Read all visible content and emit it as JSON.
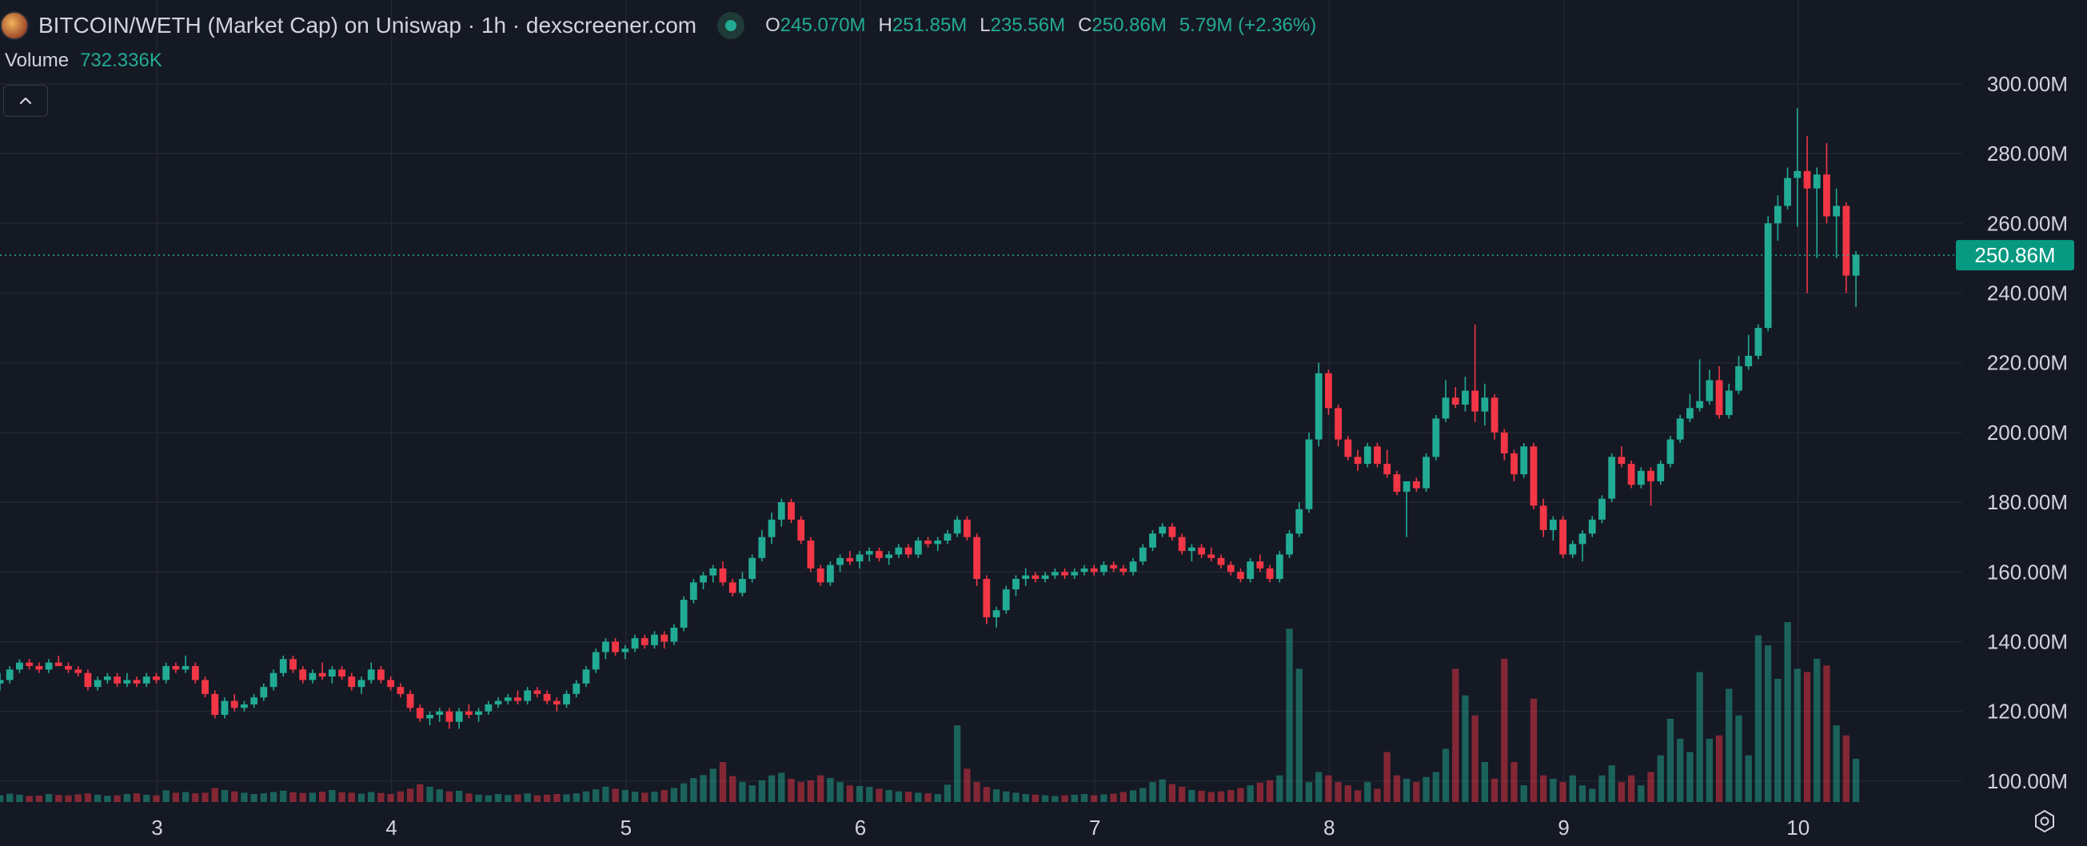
{
  "header": {
    "title": "BITCOIN/WETH (Market Cap) on Uniswap · 1h · dexscreener.com",
    "ohlc": [
      {
        "key": "O",
        "value": "245.070M"
      },
      {
        "key": "H",
        "value": "251.85M"
      },
      {
        "key": "L",
        "value": "235.56M"
      },
      {
        "key": "C",
        "value": "250.86M"
      },
      {
        "key": "",
        "value": "5.79M (+2.36%)"
      }
    ],
    "volume_label": "Volume",
    "volume_value": "732.336K"
  },
  "icons": {
    "coin": "coin-logo-icon",
    "live": "live-status-icon",
    "collapse": "chevron-up-icon",
    "settings": "settings-gear-icon"
  },
  "colors": {
    "background": "#151924",
    "grid": "#232733",
    "up": "#22ab94",
    "down": "#f23645",
    "text": "#d1d4dc",
    "price_tag": "#089981"
  },
  "chart_data": {
    "type": "candlestick",
    "title": "BITCOIN/WETH (Market Cap) on Uniswap · 1h · dexscreener.com",
    "interval": "1h",
    "x_tick_labels": [
      "3",
      "4",
      "5",
      "6",
      "7",
      "8",
      "9",
      "10"
    ],
    "y_tick_labels": [
      "100.00M",
      "120.00M",
      "140.00M",
      "160.00M",
      "180.00M",
      "200.00M",
      "220.00M",
      "240.00M",
      "260.00M",
      "280.00M",
      "300.00M"
    ],
    "y_ticks": [
      100,
      120,
      140,
      160,
      180,
      200,
      220,
      240,
      260,
      280,
      300
    ],
    "y_unit": "M",
    "ylim": [
      94,
      308
    ],
    "xlim_days": [
      2.33,
      10.7
    ],
    "first_candle_day": 2.33,
    "candles_per_day": 24,
    "last_price": 250.86,
    "last_price_label": "250.86M",
    "candles": [
      [
        128,
        131,
        126,
        129
      ],
      [
        129,
        133,
        128,
        132
      ],
      [
        132,
        135,
        131,
        134
      ],
      [
        134,
        135,
        132,
        133
      ],
      [
        133,
        134,
        131,
        132
      ],
      [
        132,
        135,
        131,
        134
      ],
      [
        134,
        136,
        133,
        133
      ],
      [
        133,
        134,
        131,
        132
      ],
      [
        132,
        133,
        130,
        131
      ],
      [
        131,
        132,
        126,
        127
      ],
      [
        127,
        130,
        126,
        129
      ],
      [
        129,
        131,
        128,
        130
      ],
      [
        130,
        131,
        127,
        128
      ],
      [
        128,
        131,
        127,
        129
      ],
      [
        129,
        130,
        127,
        128
      ],
      [
        128,
        131,
        127,
        130
      ],
      [
        130,
        131,
        128,
        129
      ],
      [
        129,
        134,
        128,
        133
      ],
      [
        133,
        134,
        131,
        132
      ],
      [
        132,
        136,
        131,
        133
      ],
      [
        133,
        134,
        128,
        129
      ],
      [
        129,
        130,
        124,
        125
      ],
      [
        125,
        126,
        118,
        119
      ],
      [
        119,
        124,
        118,
        123
      ],
      [
        123,
        125,
        120,
        121
      ],
      [
        121,
        123,
        120,
        122
      ],
      [
        122,
        125,
        121,
        124
      ],
      [
        124,
        128,
        123,
        127
      ],
      [
        127,
        132,
        126,
        131
      ],
      [
        131,
        136,
        130,
        135
      ],
      [
        135,
        136,
        131,
        132
      ],
      [
        132,
        133,
        128,
        129
      ],
      [
        129,
        132,
        128,
        131
      ],
      [
        131,
        134,
        129,
        130
      ],
      [
        130,
        133,
        128,
        132
      ],
      [
        132,
        133,
        129,
        130
      ],
      [
        130,
        131,
        126,
        127
      ],
      [
        127,
        130,
        125,
        129
      ],
      [
        129,
        134,
        128,
        132
      ],
      [
        132,
        133,
        128,
        129
      ],
      [
        129,
        130,
        126,
        127
      ],
      [
        127,
        128,
        124,
        125
      ],
      [
        125,
        126,
        120,
        121
      ],
      [
        121,
        122,
        117,
        118
      ],
      [
        118,
        120,
        116,
        119
      ],
      [
        119,
        121,
        117,
        120
      ],
      [
        120,
        121,
        115,
        117
      ],
      [
        117,
        121,
        115,
        120
      ],
      [
        120,
        122,
        118,
        119
      ],
      [
        119,
        121,
        117,
        120
      ],
      [
        120,
        123,
        119,
        122
      ],
      [
        122,
        124,
        121,
        123
      ],
      [
        123,
        125,
        122,
        124
      ],
      [
        124,
        126,
        122,
        123
      ],
      [
        123,
        127,
        122,
        126
      ],
      [
        126,
        127,
        124,
        125
      ],
      [
        125,
        126,
        122,
        123
      ],
      [
        123,
        124,
        120,
        122
      ],
      [
        122,
        126,
        121,
        125
      ],
      [
        125,
        129,
        124,
        128
      ],
      [
        128,
        133,
        127,
        132
      ],
      [
        132,
        138,
        131,
        137
      ],
      [
        137,
        141,
        135,
        140
      ],
      [
        140,
        141,
        136,
        137
      ],
      [
        137,
        139,
        135,
        138
      ],
      [
        138,
        142,
        137,
        141
      ],
      [
        141,
        142,
        138,
        139
      ],
      [
        139,
        143,
        138,
        142
      ],
      [
        142,
        143,
        138,
        140
      ],
      [
        140,
        145,
        139,
        144
      ],
      [
        144,
        153,
        143,
        152
      ],
      [
        152,
        158,
        151,
        157
      ],
      [
        157,
        160,
        155,
        159
      ],
      [
        159,
        162,
        157,
        161
      ],
      [
        161,
        163,
        156,
        157
      ],
      [
        157,
        158,
        153,
        154
      ],
      [
        154,
        160,
        153,
        158
      ],
      [
        158,
        165,
        157,
        164
      ],
      [
        164,
        172,
        163,
        170
      ],
      [
        170,
        177,
        168,
        175
      ],
      [
        175,
        181,
        173,
        180
      ],
      [
        180,
        181,
        174,
        175
      ],
      [
        175,
        176,
        168,
        169
      ],
      [
        169,
        170,
        160,
        161
      ],
      [
        161,
        162,
        156,
        157
      ],
      [
        157,
        163,
        156,
        162
      ],
      [
        162,
        165,
        160,
        164
      ],
      [
        164,
        166,
        162,
        163
      ],
      [
        163,
        166,
        161,
        165
      ],
      [
        165,
        167,
        163,
        166
      ],
      [
        166,
        167,
        163,
        164
      ],
      [
        164,
        166,
        162,
        165
      ],
      [
        165,
        168,
        164,
        167
      ],
      [
        167,
        168,
        164,
        165
      ],
      [
        165,
        170,
        164,
        169
      ],
      [
        169,
        170,
        167,
        168
      ],
      [
        168,
        170,
        166,
        169
      ],
      [
        169,
        172,
        168,
        171
      ],
      [
        171,
        176,
        170,
        175
      ],
      [
        175,
        176,
        169,
        170
      ],
      [
        170,
        171,
        156,
        158
      ],
      [
        158,
        159,
        145,
        147
      ],
      [
        147,
        150,
        144,
        149
      ],
      [
        149,
        156,
        148,
        155
      ],
      [
        155,
        159,
        153,
        158
      ],
      [
        158,
        161,
        156,
        159
      ],
      [
        159,
        160,
        157,
        158
      ],
      [
        158,
        160,
        157,
        159
      ],
      [
        159,
        161,
        158,
        160
      ],
      [
        160,
        161,
        158,
        159
      ],
      [
        159,
        161,
        158,
        160
      ],
      [
        160,
        162,
        159,
        161
      ],
      [
        161,
        162,
        159,
        160
      ],
      [
        160,
        163,
        159,
        162
      ],
      [
        162,
        163,
        160,
        161
      ],
      [
        161,
        162,
        159,
        160
      ],
      [
        160,
        164,
        159,
        163
      ],
      [
        163,
        168,
        162,
        167
      ],
      [
        167,
        172,
        166,
        171
      ],
      [
        171,
        174,
        170,
        173
      ],
      [
        173,
        174,
        169,
        170
      ],
      [
        170,
        171,
        165,
        166
      ],
      [
        166,
        168,
        163,
        167
      ],
      [
        167,
        168,
        164,
        165
      ],
      [
        165,
        167,
        163,
        164
      ],
      [
        164,
        165,
        161,
        162
      ],
      [
        162,
        163,
        159,
        160
      ],
      [
        160,
        161,
        157,
        158
      ],
      [
        158,
        164,
        157,
        163
      ],
      [
        163,
        165,
        160,
        161
      ],
      [
        161,
        162,
        157,
        158
      ],
      [
        158,
        166,
        157,
        165
      ],
      [
        165,
        172,
        164,
        171
      ],
      [
        171,
        180,
        170,
        178
      ],
      [
        178,
        200,
        177,
        198
      ],
      [
        198,
        220,
        196,
        217
      ],
      [
        217,
        218,
        205,
        207
      ],
      [
        207,
        208,
        196,
        198
      ],
      [
        198,
        199,
        192,
        193
      ],
      [
        193,
        195,
        189,
        191
      ],
      [
        191,
        197,
        190,
        196
      ],
      [
        196,
        197,
        190,
        191
      ],
      [
        191,
        195,
        187,
        188
      ],
      [
        188,
        189,
        182,
        183
      ],
      [
        183,
        184,
        170,
        186
      ],
      [
        186,
        187,
        183,
        184
      ],
      [
        184,
        194,
        183,
        193
      ],
      [
        193,
        205,
        192,
        204
      ],
      [
        204,
        215,
        203,
        210
      ],
      [
        210,
        213,
        207,
        208
      ],
      [
        208,
        216,
        206,
        212
      ],
      [
        212,
        231,
        203,
        206
      ],
      [
        206,
        214,
        202,
        210
      ],
      [
        210,
        211,
        198,
        200
      ],
      [
        200,
        201,
        192,
        194
      ],
      [
        194,
        195,
        186,
        188
      ],
      [
        188,
        197,
        187,
        196
      ],
      [
        196,
        197,
        178,
        179
      ],
      [
        179,
        181,
        170,
        172
      ],
      [
        172,
        176,
        169,
        175
      ],
      [
        175,
        176,
        164,
        165
      ],
      [
        165,
        169,
        164,
        168
      ],
      [
        168,
        172,
        163,
        171
      ],
      [
        171,
        176,
        170,
        175
      ],
      [
        175,
        182,
        174,
        181
      ],
      [
        181,
        194,
        180,
        193
      ],
      [
        193,
        196,
        190,
        191
      ],
      [
        191,
        192,
        184,
        185
      ],
      [
        185,
        190,
        184,
        189
      ],
      [
        189,
        190,
        179,
        186
      ],
      [
        186,
        192,
        185,
        191
      ],
      [
        191,
        199,
        190,
        198
      ],
      [
        198,
        205,
        197,
        204
      ],
      [
        204,
        211,
        203,
        207
      ],
      [
        207,
        221,
        206,
        209
      ],
      [
        209,
        218,
        208,
        215
      ],
      [
        215,
        219,
        204,
        205
      ],
      [
        205,
        214,
        204,
        212
      ],
      [
        212,
        222,
        211,
        219
      ],
      [
        219,
        228,
        218,
        222
      ],
      [
        222,
        231,
        221,
        230
      ],
      [
        230,
        262,
        229,
        260
      ],
      [
        260,
        268,
        255,
        265
      ],
      [
        265,
        276,
        264,
        273
      ],
      [
        273,
        293,
        259,
        275
      ],
      [
        275,
        285,
        240,
        270
      ],
      [
        270,
        276,
        250,
        274
      ],
      [
        274,
        283,
        260,
        262
      ],
      [
        262,
        270,
        250,
        265
      ],
      [
        265,
        266,
        240,
        245
      ],
      [
        245,
        252,
        236,
        251
      ]
    ],
    "volumes": [
      2.0,
      2.5,
      2.2,
      1.8,
      1.9,
      2.4,
      2.1,
      2.0,
      2.3,
      2.6,
      2.2,
      1.9,
      2.0,
      2.4,
      2.6,
      2.2,
      2.0,
      3.5,
      2.8,
      3.0,
      2.6,
      2.8,
      4.2,
      3.6,
      3.2,
      2.8,
      2.4,
      2.6,
      3.0,
      3.4,
      2.9,
      2.7,
      2.8,
      3.1,
      3.6,
      2.9,
      2.8,
      2.5,
      3.0,
      2.7,
      2.4,
      3.2,
      4.0,
      5.3,
      4.6,
      3.8,
      3.2,
      3.4,
      2.6,
      2.2,
      2.0,
      2.4,
      2.1,
      2.3,
      2.6,
      2.0,
      2.2,
      2.4,
      2.3,
      2.6,
      3.2,
      3.8,
      4.6,
      4.0,
      3.6,
      3.1,
      2.8,
      3.1,
      3.6,
      4.2,
      5.6,
      7.2,
      8.1,
      10.0,
      12.0,
      7.8,
      6.0,
      5.0,
      6.5,
      8.0,
      8.8,
      7.0,
      6.0,
      6.5,
      8.0,
      7.2,
      6.0,
      5.0,
      4.8,
      4.5,
      4.0,
      3.6,
      3.2,
      3.1,
      2.8,
      2.6,
      2.4,
      5.2,
      23.0,
      10.0,
      6.0,
      4.5,
      3.8,
      3.2,
      2.8,
      2.4,
      2.2,
      2.0,
      1.8,
      2.0,
      2.2,
      2.4,
      2.0,
      2.3,
      2.5,
      3.0,
      3.5,
      4.2,
      6.0,
      6.8,
      5.4,
      4.6,
      3.6,
      3.4,
      3.0,
      3.2,
      3.6,
      4.2,
      5.0,
      5.8,
      6.5,
      8.0,
      52.0,
      40.0,
      6.0,
      9.0,
      8.0,
      6.0,
      5.0,
      3.5,
      6.0,
      4.0,
      15.0,
      8.0,
      7.0,
      6.0,
      7.5,
      9.0,
      16.0,
      40.0,
      32.0,
      26.0,
      12.0,
      7.0,
      43.0,
      12.0,
      5.0,
      31.0,
      8.0,
      7.0,
      6.0,
      8.0,
      5.0,
      4.0,
      8.0,
      11.0,
      6.0,
      8.0,
      5.0,
      9.0,
      14.0,
      25.0,
      19.0,
      15.0,
      39.0,
      19.0,
      20.0,
      34.0,
      26.0,
      14.0,
      50.0,
      47.0,
      37.0,
      54.0,
      40.0,
      39.0,
      43.0,
      41.0,
      23.0,
      20.0,
      13.0,
      14.0
    ]
  }
}
